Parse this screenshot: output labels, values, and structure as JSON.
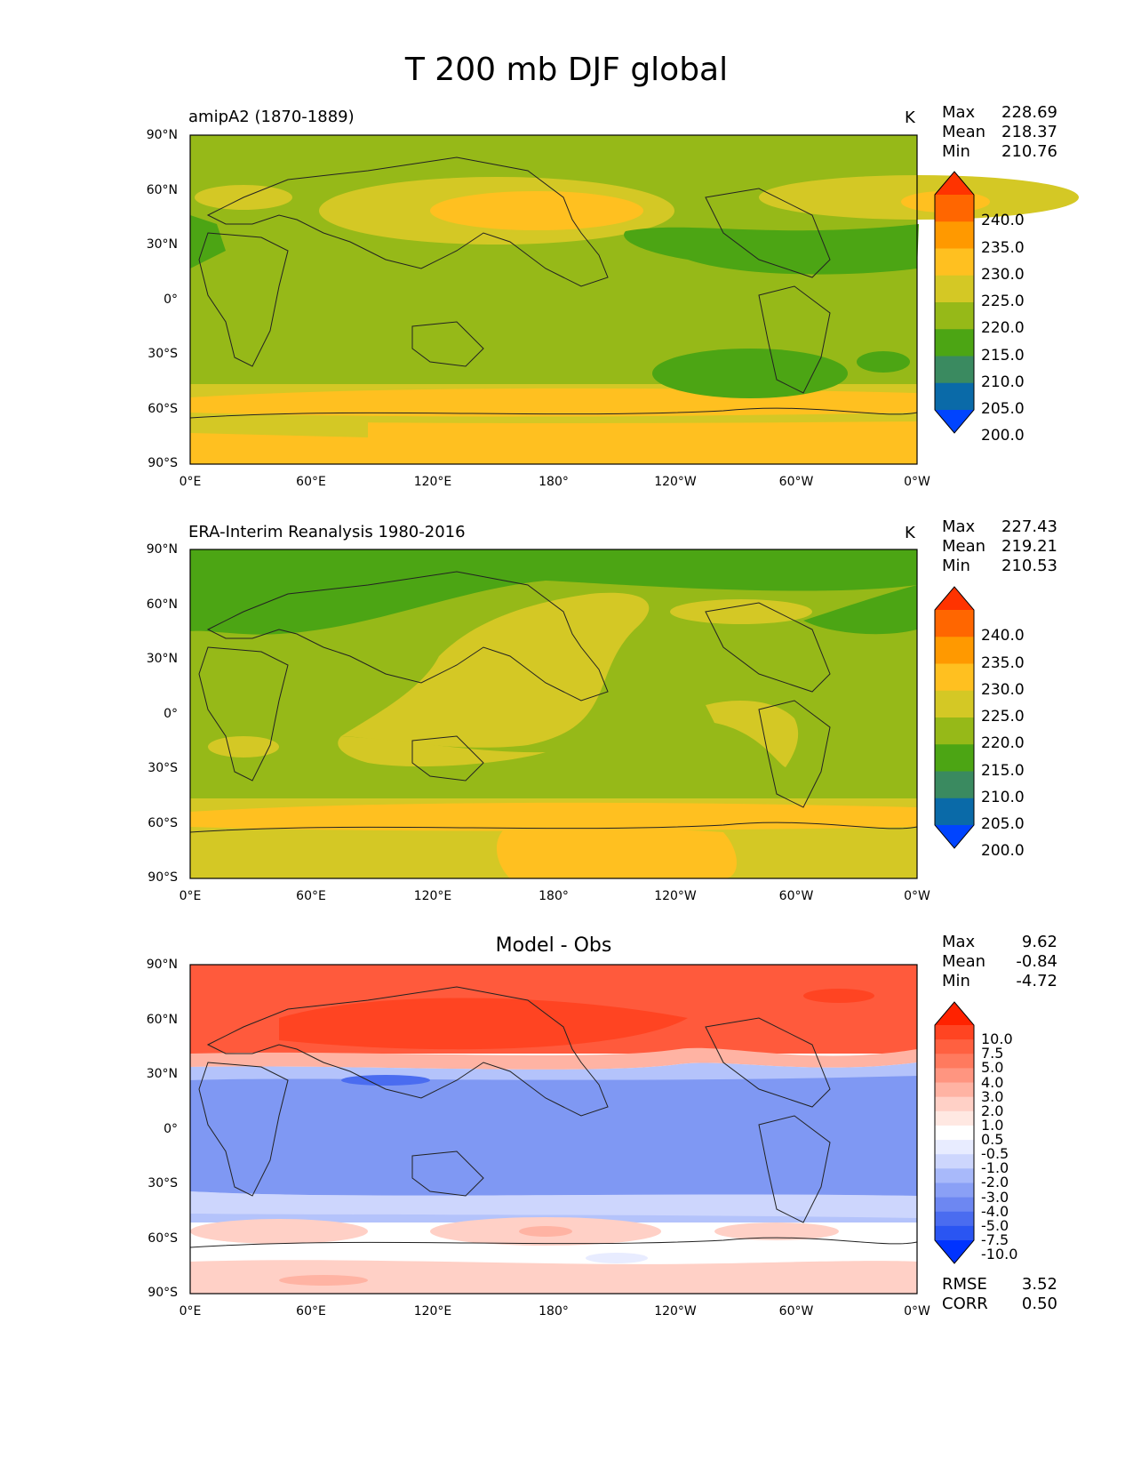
{
  "figure": {
    "title": "T 200 mb DJF global"
  },
  "axes": {
    "lat_ticks": [
      "90°N",
      "60°N",
      "30°N",
      "0°",
      "30°S",
      "60°S",
      "90°S"
    ],
    "lon_ticks": [
      "0°E",
      "60°E",
      "120°E",
      "180°",
      "120°W",
      "60°W",
      "0°W"
    ]
  },
  "panels": [
    {
      "label": "amipA2 (1870-1889)",
      "units": "K",
      "stats": {
        "max_label": "Max",
        "max": "228.69",
        "mean_label": "Mean",
        "mean": "218.37",
        "min_label": "Min",
        "min": "210.76"
      },
      "colorbar": {
        "labels": [
          "240.0",
          "235.0",
          "230.0",
          "225.0",
          "220.0",
          "215.0",
          "210.0",
          "205.0",
          "200.0"
        ],
        "colors": [
          "#ff3300",
          "#ff6600",
          "#ff9900",
          "#ffc020",
          "#d4c825",
          "#96b918",
          "#4ca514",
          "#3a8a60",
          "#0a6aa8",
          "#0044ff"
        ]
      }
    },
    {
      "label": "ERA-Interim Reanalysis 1980-2016",
      "units": "K",
      "stats": {
        "max_label": "Max",
        "max": "227.43",
        "mean_label": "Mean",
        "mean": "219.21",
        "min_label": "Min",
        "min": "210.53"
      },
      "colorbar": {
        "labels": [
          "240.0",
          "235.0",
          "230.0",
          "225.0",
          "220.0",
          "215.0",
          "210.0",
          "205.0",
          "200.0"
        ],
        "colors": [
          "#ff3300",
          "#ff6600",
          "#ff9900",
          "#ffc020",
          "#d4c825",
          "#96b918",
          "#4ca514",
          "#3a8a60",
          "#0a6aa8",
          "#0044ff"
        ]
      }
    },
    {
      "label": "Model - Obs",
      "units": "",
      "stats": {
        "max_label": "Max",
        "max": "9.62",
        "mean_label": "Mean",
        "mean": "-0.84",
        "min_label": "Min",
        "min": "-4.72"
      },
      "colorbar": {
        "labels": [
          "10.0",
          "7.5",
          "5.0",
          "4.0",
          "3.0",
          "2.0",
          "1.0",
          "0.5",
          "-0.5",
          "-1.0",
          "-2.0",
          "-3.0",
          "-4.0",
          "-5.0",
          "-7.5",
          "-10.0"
        ],
        "colors": [
          "#ff2200",
          "#ff4422",
          "#ff6040",
          "#ff7a5e",
          "#ff9580",
          "#ffb3a3",
          "#ffd0c6",
          "#ffe8e2",
          "#ffffff",
          "#e8ecff",
          "#cdd6fd",
          "#a8b9fa",
          "#8aa0f6",
          "#6d87f2",
          "#4a6cf0",
          "#2a55f2",
          "#0033ff"
        ]
      },
      "summary": {
        "rmse_label": "RMSE",
        "rmse": "3.52",
        "corr_label": "CORR",
        "corr": "0.50"
      }
    }
  ],
  "palette": {
    "p1_bg": "#96b918",
    "p1_warm": "#d4c825",
    "p1_warmer": "#ffc020",
    "p1_cool": "#4ca514",
    "diff_red": "#ff5a3c",
    "diff_redder": "#ff4422",
    "diff_blue": "#7f98f3",
    "diff_pale_blue": "#b4c3fb",
    "diff_pale_red": "#ffd0c6"
  }
}
